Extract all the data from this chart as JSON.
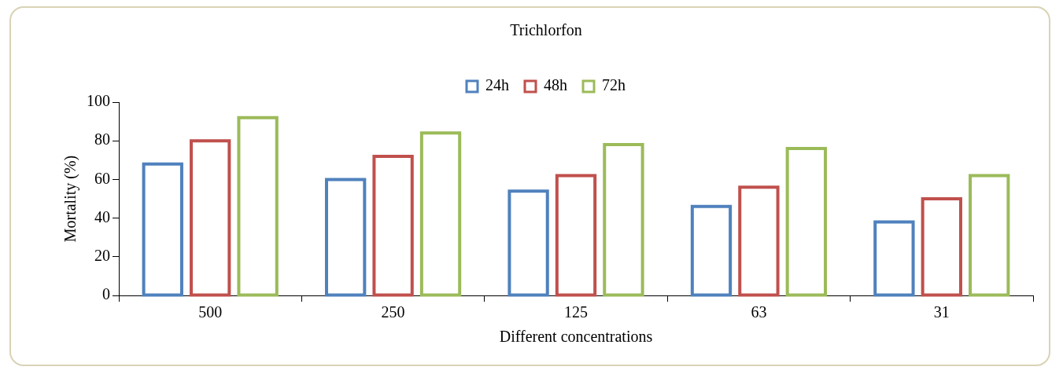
{
  "chart_data": {
    "type": "bar",
    "title": "Trichlorfon",
    "xlabel": "Different concentrations",
    "ylabel": "Mortality (%)",
    "categories": [
      "500",
      "250",
      "125",
      "63",
      "31"
    ],
    "series": [
      {
        "name": "24h",
        "color": "#4f81bd",
        "values": [
          68,
          60,
          54,
          46,
          38
        ]
      },
      {
        "name": "48h",
        "color": "#c0504d",
        "values": [
          80,
          72,
          62,
          56,
          50
        ]
      },
      {
        "name": "72h",
        "color": "#9bbb59",
        "values": [
          92,
          84,
          78,
          76,
          62
        ]
      }
    ],
    "ylim": [
      0,
      100
    ],
    "yticks": [
      0,
      20,
      40,
      60,
      80,
      100
    ],
    "grid": false,
    "legend": "top"
  }
}
